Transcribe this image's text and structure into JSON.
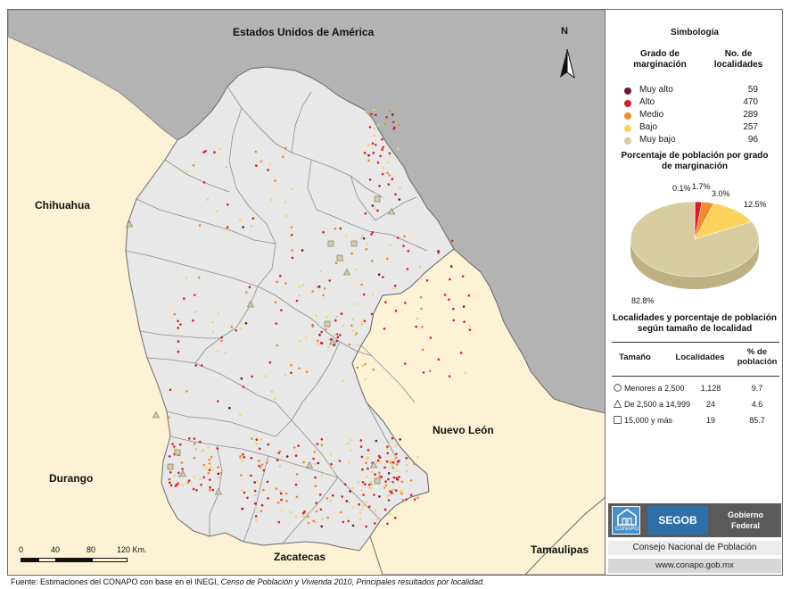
{
  "map": {
    "country_label": "Estados Unidos de América",
    "neighbors": {
      "chihuahua": "Chihuahua",
      "durango": "Durango",
      "nuevo_leon": "Nuevo León",
      "zacatecas": "Zacatecas",
      "tamaulipas": "Tamaulipas"
    },
    "north_label": "N",
    "scale": {
      "ticks": [
        "0",
        "40",
        "80",
        "120 Km."
      ]
    },
    "colors": {
      "sea_land_usa": "#b3b3b3",
      "state": "#e8e8e8",
      "neighbors": "#fdf2d6",
      "boundary": "#7a7a7a"
    }
  },
  "legend": {
    "title": "Simbología",
    "col_grado": "Grado de marginación",
    "col_num": "No. de localidades",
    "categories": [
      {
        "label": "Muy alto",
        "count": "59",
        "color": "#6b1a2e"
      },
      {
        "label": "Alto",
        "count": "470",
        "color": "#d21f2a"
      },
      {
        "label": "Medio",
        "count": "289",
        "color": "#f08a2c"
      },
      {
        "label": "Bajo",
        "count": "257",
        "color": "#fbd35c"
      },
      {
        "label": "Muy bajo",
        "count": "96",
        "color": "#d8cda0"
      }
    ],
    "pie_title": "Porcentaje de población por grado de marginación",
    "pie": [
      {
        "label": "0.1%",
        "value": 0.1,
        "color": "#6b1a2e"
      },
      {
        "label": "1.7%",
        "value": 1.7,
        "color": "#d21f2a"
      },
      {
        "label": "3.0%",
        "value": 3.0,
        "color": "#f08a2c"
      },
      {
        "label": "12.5%",
        "value": 12.5,
        "color": "#fbd35c"
      },
      {
        "label": "82.8%",
        "value": 82.8,
        "color": "#d8cda0"
      }
    ],
    "size_title": "Localidades y porcentaje de población según tamaño de localidad",
    "size_headers": {
      "tamano": "Tamaño",
      "localidades": "Localidades",
      "pct": "% de población"
    },
    "size_rows": [
      {
        "label": "Menores a 2,500",
        "count": "1,128",
        "pct": "9.7",
        "symbol": "circle"
      },
      {
        "label": "De 2,500 a 14,999",
        "count": "24",
        "pct": "4.6",
        "symbol": "triangle"
      },
      {
        "label": "15,000 y más",
        "count": "19",
        "pct": "85.7",
        "symbol": "square"
      }
    ]
  },
  "logos": {
    "conapo": "CONAPO",
    "segob": "SEGOB",
    "gobierno": "Gobierno Federal",
    "consejo": "Consejo Nacional de Población",
    "url": "www.conapo.gob.mx"
  },
  "footnote": {
    "prefix": "Fuente: Estimaciones del CONAPO con base en el INEGI, ",
    "italic": "Censo de Población y Vivienda 2010, Principales resultados por localidad."
  }
}
